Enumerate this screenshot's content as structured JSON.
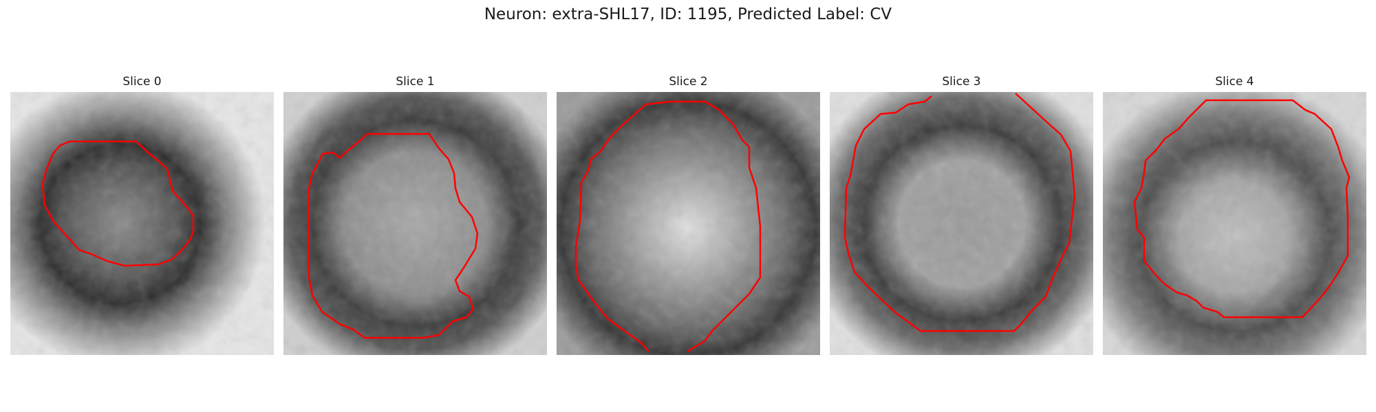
{
  "figure": {
    "title": "Neuron: extra-SHL17, ID: 1195, Predicted Label: CV"
  },
  "panels": [
    {
      "title": "Slice 0"
    },
    {
      "title": "Slice 1"
    },
    {
      "title": "Slice 2"
    },
    {
      "title": "Slice 3"
    },
    {
      "title": "Slice 4"
    }
  ],
  "colors": {
    "contour": "#ff0000",
    "background": "#ffffff"
  }
}
